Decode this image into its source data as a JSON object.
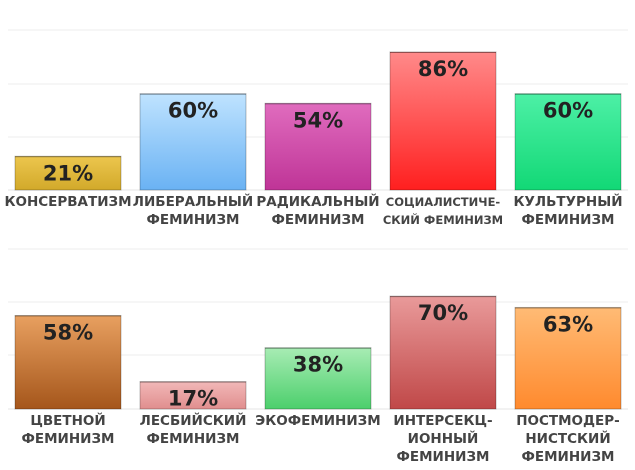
{
  "chart_data": [
    {
      "type": "bar",
      "title": "",
      "xlabel": "",
      "ylabel": "",
      "ylim": [
        0,
        100
      ],
      "grid": true,
      "categories": [
        [
          "КОНСЕРВАТИЗМ"
        ],
        [
          "ЛИБЕРАЛЬНЫЙ",
          "ФЕМИНИЗМ"
        ],
        [
          "РАДИКАЛЬНЫЙ",
          "ФЕМИНИЗМ"
        ],
        [
          "СОЦИАЛИСТИЧЕ-",
          "СКИЙ ФЕМИНИЗМ"
        ],
        [
          "КУЛЬТУРНЫЙ",
          "ФЕМИНИЗМ"
        ]
      ],
      "values": [
        21,
        60,
        54,
        86,
        60
      ],
      "labels": [
        "21%",
        "60%",
        "54%",
        "86%",
        "60%"
      ],
      "colors": [
        [
          "#ecc64e",
          "#d2a92a"
        ],
        [
          "#bfe3ff",
          "#6ab2f3"
        ],
        [
          "#e06cbe",
          "#bf3497"
        ],
        [
          "#ff8a8a",
          "#ff1f1f"
        ],
        [
          "#4df0a6",
          "#12d876"
        ]
      ]
    },
    {
      "type": "bar",
      "title": "",
      "xlabel": "",
      "ylabel": "",
      "ylim": [
        0,
        100
      ],
      "grid": true,
      "categories": [
        [
          "ЦВЕТНОЙ",
          "ФЕМИНИЗМ"
        ],
        [
          "ЛЕСБИЙСКИЙ",
          "ФЕМИНИЗМ"
        ],
        [
          "ЭКОФЕМИНИЗМ"
        ],
        [
          "ИНТЕРСЕКЦ-",
          "ИОННЫЙ",
          "ФЕМИНИЗМ"
        ],
        [
          "ПОСТМОДЕР-",
          "НИСТСКИЙ",
          "ФЕМИНИЗМ"
        ]
      ],
      "values": [
        58,
        17,
        38,
        70,
        63
      ],
      "labels": [
        "58%",
        "17%",
        "38%",
        "70%",
        "63%"
      ],
      "colors": [
        [
          "#e8a060",
          "#a5561b"
        ],
        [
          "#f2b8b8",
          "#e08e8e"
        ],
        [
          "#a8ecb4",
          "#4ccf6c"
        ],
        [
          "#e99a9a",
          "#c04848"
        ],
        [
          "#ffbb75",
          "#ff8a2e"
        ]
      ]
    }
  ]
}
